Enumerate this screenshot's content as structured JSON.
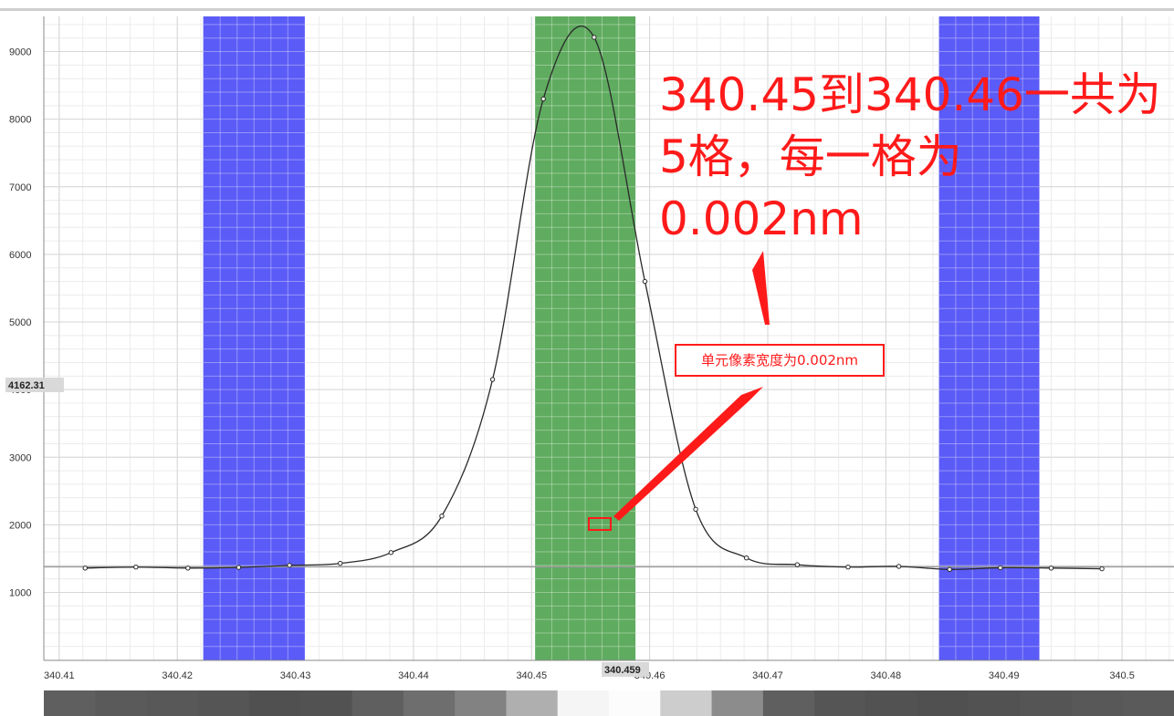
{
  "chart_data": {
    "type": "line",
    "x_ticks": [
      340.41,
      340.42,
      340.43,
      340.44,
      340.45,
      340.46,
      340.47,
      340.48,
      340.49,
      340.5
    ],
    "x_tick_labels": [
      "340.41",
      "340.42",
      "340.43",
      "340.44",
      "340.45",
      "340.46",
      "340.47",
      "340.48",
      "340.49",
      "340.5"
    ],
    "y_ticks": [
      1000,
      2000,
      3000,
      4000,
      5000,
      6000,
      7000,
      8000,
      9000
    ],
    "xlim": [
      340.4087,
      340.5044
    ],
    "ylim": [
      -5,
      9520
    ],
    "series": [
      {
        "values": [
          [
            340.4122,
            1360
          ],
          [
            340.4165,
            1375
          ],
          [
            340.4209,
            1360
          ],
          [
            340.4252,
            1370
          ],
          [
            340.4295,
            1400
          ],
          [
            340.4338,
            1430
          ],
          [
            340.4381,
            1590
          ],
          [
            340.4424,
            2130
          ],
          [
            340.4467,
            4150
          ],
          [
            340.451,
            8300
          ],
          [
            340.4553,
            9210
          ],
          [
            340.4596,
            5600
          ],
          [
            340.4639,
            2230
          ],
          [
            340.4682,
            1510
          ],
          [
            340.4725,
            1410
          ],
          [
            340.4768,
            1375
          ],
          [
            340.4811,
            1385
          ],
          [
            340.4854,
            1340
          ],
          [
            340.4897,
            1365
          ],
          [
            340.494,
            1360
          ],
          [
            340.4983,
            1350
          ]
        ]
      }
    ],
    "bands": [
      {
        "range": [
          340.4222,
          340.4308
        ],
        "color": "#5b5bf7"
      },
      {
        "range": [
          340.4503,
          340.4588
        ],
        "color": "#5fab5f"
      },
      {
        "range": [
          340.4845,
          340.493
        ],
        "color": "#5b5bf7"
      }
    ],
    "baseline_value": 1380,
    "x_cursor_label": "340.459",
    "y_cursor_label": "4162.31",
    "grid": true,
    "intensity_strip": [
      95,
      90,
      88,
      85,
      80,
      82,
      95,
      110,
      130,
      175,
      245,
      252,
      205,
      140,
      95,
      85,
      82,
      80,
      82,
      85,
      88,
      90
    ]
  },
  "annotations": {
    "big_note": "340.45到340.46一共为\n5格，每一格为\n0.002nm",
    "small_note": "单元像素宽度为0.002nm",
    "color": "#ff1a1a"
  }
}
